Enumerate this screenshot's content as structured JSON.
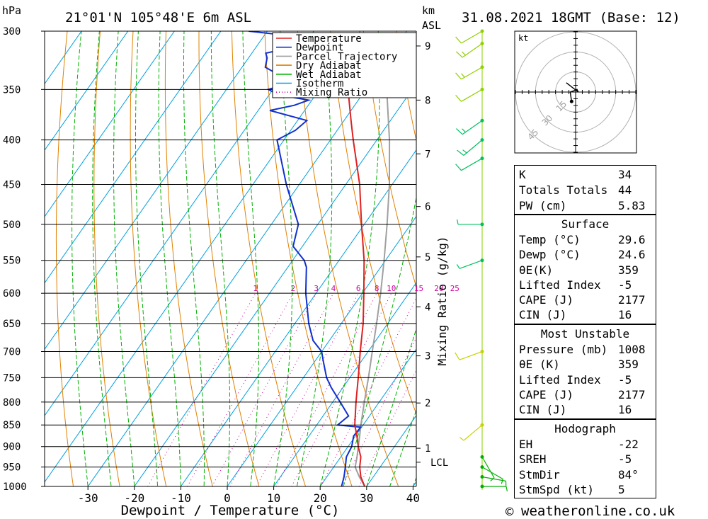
{
  "header": {
    "pressure_unit": "hPa",
    "location": "21°01'N 105°48'E 6m ASL",
    "km_label": "km",
    "asl_label": "ASL",
    "datetime": "31.08.2021 18GMT (Base: 12)"
  },
  "legend": {
    "items": [
      {
        "label": "Temperature",
        "color": "#e02020",
        "style": "solid"
      },
      {
        "label": "Dewpoint",
        "color": "#1030d0",
        "style": "solid"
      },
      {
        "label": "Parcel Trajectory",
        "color": "#a0a0a0",
        "style": "solid"
      },
      {
        "label": "Dry Adiabat",
        "color": "#e08000",
        "style": "solid"
      },
      {
        "label": "Wet Adiabat",
        "color": "#00b000",
        "style": "solid"
      },
      {
        "label": "Isotherm",
        "color": "#00a0e0",
        "style": "solid"
      },
      {
        "label": "Mixing Ratio",
        "color": "#d000a0",
        "style": "dotted"
      }
    ]
  },
  "chart_data": {
    "type": "skew-t",
    "xlabel": "Dewpoint / Temperature (°C)",
    "ylabel_right": "Mixing Ratio (g/kg)",
    "x_ticks": [
      "-30",
      "-20",
      "-10",
      "0",
      "10",
      "20",
      "30",
      "40"
    ],
    "x_tick_values": [
      -30,
      -20,
      -10,
      0,
      10,
      20,
      30,
      40
    ],
    "xlim_at_1000hPa": [
      -40,
      40
    ],
    "y_axis": "pressure_log",
    "ylim_hPa": [
      1000,
      300
    ],
    "pressure_ticks": [
      300,
      350,
      400,
      450,
      500,
      550,
      600,
      650,
      700,
      750,
      800,
      850,
      900,
      950,
      1000
    ],
    "pressure_tick_labels": [
      "300",
      "350",
      "400",
      "450",
      "500",
      "550",
      "600",
      "650",
      "700",
      "750",
      "800",
      "850",
      "900",
      "950",
      "1000"
    ],
    "height_km_ticks": [
      {
        "label": "1",
        "p": 904
      },
      {
        "label": "2",
        "p": 802
      },
      {
        "label": "3",
        "p": 708
      },
      {
        "label": "4",
        "p": 622
      },
      {
        "label": "5",
        "p": 545
      },
      {
        "label": "6",
        "p": 477
      },
      {
        "label": "7",
        "p": 415
      },
      {
        "label": "8",
        "p": 360
      },
      {
        "label": "9",
        "p": 312
      }
    ],
    "lcl": {
      "label": "LCL",
      "p": 938
    },
    "mixing_ratio_labels": [
      "1",
      "2",
      "3",
      "4",
      "6",
      "8",
      "10",
      "15",
      "20",
      "25"
    ],
    "mixing_ratio_values": [
      1,
      2,
      3,
      4,
      6,
      8,
      10,
      15,
      20,
      25
    ],
    "mixing_ratio_label_p": 600,
    "temperature": {
      "p": [
        1000,
        975,
        950,
        925,
        900,
        875,
        850,
        800,
        750,
        700,
        650,
        600,
        550,
        500,
        450,
        400,
        380,
        360,
        340,
        320,
        310
      ],
      "t": [
        29.6,
        27.3,
        25.6,
        24.3,
        22.2,
        20.3,
        18.2,
        15.0,
        11.8,
        8.3,
        4.7,
        0.3,
        -4.6,
        -10.6,
        -17.0,
        -25.1,
        -28.5,
        -32.0,
        -35.6,
        -39.5,
        -41.8
      ]
    },
    "dewpoint": {
      "p": [
        1000,
        975,
        950,
        925,
        900,
        875,
        855,
        850,
        830,
        800,
        770,
        750,
        720,
        700,
        680,
        650,
        600,
        560,
        550,
        530,
        500,
        450,
        400,
        390,
        380,
        370,
        365,
        360,
        355,
        350,
        345,
        340,
        335,
        330,
        322,
        318,
        312,
        305,
        300
      ],
      "t": [
        24.6,
        23.7,
        22.5,
        21.2,
        20.8,
        19.6,
        19.8,
        14.5,
        15.5,
        11.6,
        7.5,
        5.0,
        2.0,
        0.0,
        -3.5,
        -7.0,
        -12.2,
        -16.0,
        -17.5,
        -22.0,
        -24.2,
        -32.8,
        -41.5,
        -39.0,
        -38.0,
        -47.5,
        -43.0,
        -40.7,
        -48.0,
        -51.0,
        -47.8,
        -48.0,
        -52.0,
        -55.0,
        -56.0,
        -57.0,
        -51.0,
        -51.0,
        -64.0
      ]
    },
    "parcel": {
      "p": [
        1000,
        975,
        950,
        925,
        900,
        875,
        850,
        800,
        750,
        700,
        650,
        600,
        550,
        500,
        450,
        400,
        350,
        320
      ],
      "t": [
        29.6,
        27.0,
        24.6,
        23.5,
        22.2,
        20.9,
        19.5,
        16.8,
        14.0,
        10.9,
        7.6,
        3.9,
        -0.3,
        -5.1,
        -10.6,
        -17.3,
        -25.5,
        -31.5
      ]
    },
    "wind_profile": [
      {
        "p": 1000,
        "dir": 90,
        "spd": 5
      },
      {
        "p": 975,
        "dir": 100,
        "spd": 5
      },
      {
        "p": 950,
        "dir": 120,
        "spd": 5
      },
      {
        "p": 925,
        "dir": 150,
        "spd": 5
      },
      {
        "p": 850,
        "dir": 230,
        "spd": 5
      },
      {
        "p": 700,
        "dir": 250,
        "spd": 10
      },
      {
        "p": 550,
        "dir": 250,
        "spd": 5
      },
      {
        "p": 500,
        "dir": 270,
        "spd": 5
      },
      {
        "p": 420,
        "dir": 240,
        "spd": 10
      },
      {
        "p": 400,
        "dir": 230,
        "spd": 15
      },
      {
        "p": 380,
        "dir": 235,
        "spd": 15
      },
      {
        "p": 350,
        "dir": 240,
        "spd": 10
      },
      {
        "p": 330,
        "dir": 240,
        "spd": 15
      },
      {
        "p": 310,
        "dir": 235,
        "spd": 15
      },
      {
        "p": 300,
        "dir": 240,
        "spd": 10
      }
    ]
  },
  "hodograph": {
    "unit_label": "kt",
    "ring_labels": [
      "15",
      "30",
      "45"
    ],
    "ring_values": [
      15,
      30,
      45
    ],
    "trace_kt": [
      {
        "u": -3,
        "v": -7
      },
      {
        "u": -4,
        "v": 0
      },
      {
        "u": -1,
        "v": 1
      },
      {
        "u": 1,
        "v": 2
      },
      {
        "u": 2,
        "v": 0
      },
      {
        "u": -7,
        "v": 7
      }
    ]
  },
  "indices": {
    "general": [
      {
        "label": "K",
        "value": "34"
      },
      {
        "label": "Totals Totals",
        "value": "44"
      },
      {
        "label": "PW (cm)",
        "value": "5.83"
      }
    ],
    "surface": {
      "title": "Surface",
      "rows": [
        {
          "label": "Temp (°C)",
          "value": "29.6"
        },
        {
          "label": "Dewp (°C)",
          "value": "24.6"
        },
        {
          "label": "θE(K)",
          "value": "359"
        },
        {
          "label": "Lifted Index",
          "value": "-5"
        },
        {
          "label": "CAPE (J)",
          "value": "2177"
        },
        {
          "label": "CIN (J)",
          "value": "16"
        }
      ]
    },
    "most_unstable": {
      "title": "Most Unstable",
      "rows": [
        {
          "label": "Pressure (mb)",
          "value": "1008"
        },
        {
          "label": "θE (K)",
          "value": "359"
        },
        {
          "label": "Lifted Index",
          "value": "-5"
        },
        {
          "label": "CAPE (J)",
          "value": "2177"
        },
        {
          "label": "CIN (J)",
          "value": "16"
        }
      ]
    },
    "hodograph_params": {
      "title": "Hodograph",
      "rows": [
        {
          "label": "EH",
          "value": "-22"
        },
        {
          "label": "SREH",
          "value": "-5"
        },
        {
          "label": "StmDir",
          "value": "84°"
        },
        {
          "label": "StmSpd (kt)",
          "value": "5"
        }
      ]
    }
  },
  "footer": {
    "copyright_symbol": "©",
    "site": "weatheronline.co.uk"
  }
}
